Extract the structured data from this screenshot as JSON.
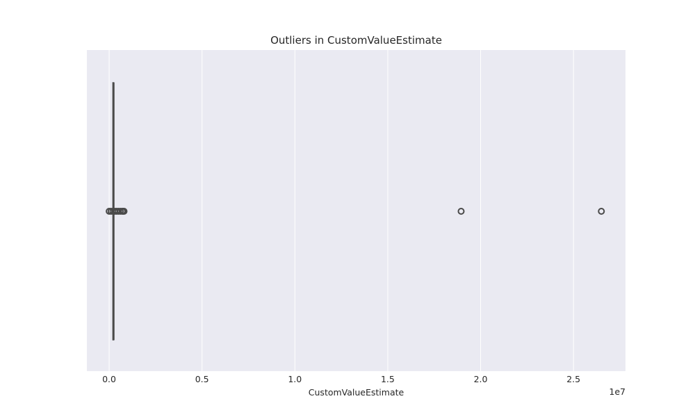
{
  "chart_data": {
    "type": "box",
    "orientation": "horizontal",
    "title": "Outliers in CustomValueEstimate",
    "xlabel": "CustomValueEstimate",
    "ylabel": "",
    "offset_label": "1e7",
    "xlim": [
      -0.12,
      2.78
    ],
    "xticks": [
      0.0,
      0.5,
      1.0,
      1.5,
      2.0,
      2.5
    ],
    "xtick_labels": [
      "0.0",
      "0.5",
      "1.0",
      "1.5",
      "2.0",
      "2.5"
    ],
    "grid": true,
    "box": {
      "whisker_low": 0.02,
      "q1": 0.02,
      "median": 0.025,
      "q3": 0.025,
      "whisker_high": 0.025
    },
    "outliers": [
      0.0,
      0.01,
      0.02,
      0.03,
      0.04,
      0.05,
      0.06,
      0.07,
      0.075,
      0.08,
      1.895,
      2.65
    ],
    "colors": {
      "background": "#eaeaf2",
      "grid": "#ffffff",
      "box": "#4a4a4a"
    }
  }
}
